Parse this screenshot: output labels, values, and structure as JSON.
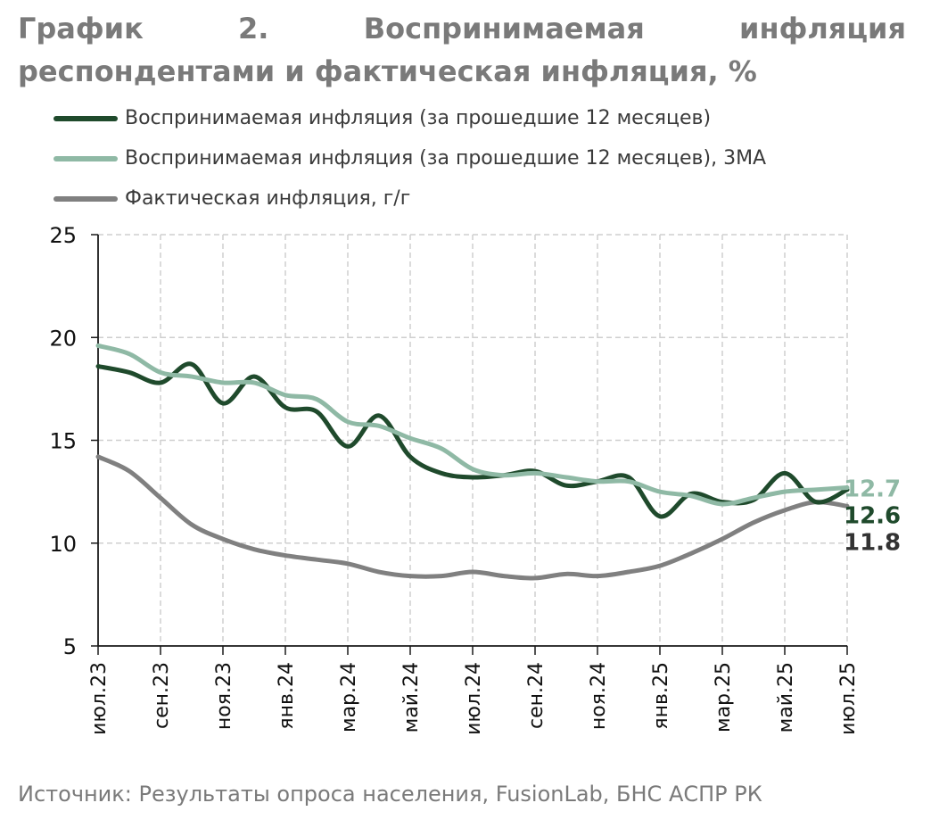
{
  "title": "График 2. Воспринимаемая инфляция респондентами и фактическая инфляция, %",
  "source": "Источник: Результаты опроса населения, FusionLab, БНС АСПР РК",
  "colors": {
    "perceived": "#1f4a2c",
    "perceived_3ma": "#8fb9a5",
    "actual": "#808080",
    "grid": "#cfcfcf",
    "axis": "#1a1a1a",
    "title": "#7a7a7a"
  },
  "chart_data": {
    "type": "line",
    "xlabel": "",
    "ylabel": "",
    "ylim": [
      5,
      25
    ],
    "yticks": [
      5,
      10,
      15,
      20,
      25
    ],
    "grid": true,
    "legend_position": "top-left",
    "x_tick_labels": [
      "июл.23",
      "сен.23",
      "ноя.23",
      "янв.24",
      "мар.24",
      "май.24",
      "июл.24",
      "сен.24",
      "ноя.24",
      "янв.25",
      "мар.25",
      "май.25",
      "июл.25"
    ],
    "x": [
      "июл.23",
      "авг.23",
      "сен.23",
      "окт.23",
      "ноя.23",
      "дек.23",
      "янв.24",
      "фев.24",
      "мар.24",
      "апр.24",
      "май.24",
      "июн.24",
      "июл.24",
      "авг.24",
      "сен.24",
      "окт.24",
      "ноя.24",
      "дек.24",
      "янв.25",
      "фев.25",
      "мар.25",
      "апр.25",
      "май.25",
      "июн.25",
      "июл.25"
    ],
    "series": [
      {
        "name": "Воспринимаемая инфляция (за прошедшие 12 месяцев)",
        "color": "#1f4a2c",
        "end_label": "12.6",
        "values": [
          18.6,
          18.3,
          17.8,
          18.7,
          16.8,
          18.1,
          16.6,
          16.4,
          14.7,
          16.2,
          14.2,
          13.4,
          13.2,
          13.3,
          13.5,
          12.8,
          13.0,
          13.2,
          11.3,
          12.4,
          12.0,
          12.1,
          13.4,
          12.0,
          12.6
        ]
      },
      {
        "name": "Воспринимаемая инфляция (за прошедшие 12 месяцев), 3МА",
        "color": "#8fb9a5",
        "end_label": "12.7",
        "values": [
          19.6,
          19.2,
          18.3,
          18.1,
          17.8,
          17.8,
          17.2,
          17.0,
          15.9,
          15.7,
          15.1,
          14.6,
          13.6,
          13.3,
          13.4,
          13.2,
          13.0,
          13.0,
          12.5,
          12.3,
          11.9,
          12.2,
          12.5,
          12.6,
          12.7
        ]
      },
      {
        "name": "Фактическая инфляция, г/г",
        "color": "#808080",
        "end_label": "11.8",
        "values": [
          14.2,
          13.5,
          12.2,
          10.9,
          10.2,
          9.7,
          9.4,
          9.2,
          9.0,
          8.6,
          8.4,
          8.4,
          8.6,
          8.4,
          8.3,
          8.5,
          8.4,
          8.6,
          8.9,
          9.5,
          10.2,
          11.0,
          11.6,
          12.0,
          11.8
        ]
      }
    ]
  }
}
